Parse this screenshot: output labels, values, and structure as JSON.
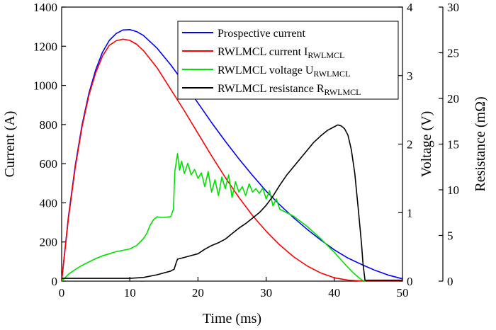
{
  "chart_data": {
    "type": "line",
    "x_axis": {
      "label": "Time (ms)",
      "range": [
        0,
        50
      ],
      "ticks": [
        0,
        10,
        20,
        30,
        40,
        50
      ]
    },
    "y_axes": [
      {
        "id": "current",
        "label": "Current (A)",
        "range": [
          0,
          1400
        ],
        "ticks": [
          0,
          200,
          400,
          600,
          800,
          1000,
          1200,
          1400
        ]
      },
      {
        "id": "voltage",
        "label": "Voltage (V)",
        "range": [
          0,
          4
        ],
        "ticks": [
          0,
          1,
          2,
          3,
          4
        ]
      },
      {
        "id": "resistance",
        "label": "Resistance (mΩ)",
        "range": [
          0,
          30
        ],
        "ticks": [
          0,
          5,
          10,
          15,
          20,
          25,
          30
        ]
      }
    ],
    "grid": false,
    "legend": {
      "placement": "top-right",
      "entries": [
        {
          "text": "Prospective  current",
          "sub": ""
        },
        {
          "text": "RWLMCL current I",
          "sub": "RWLMCL"
        },
        {
          "text": "RWLMCL voltage U",
          "sub": "RWLMCL"
        },
        {
          "text": "RWLMCL resistance R",
          "sub": "RWLMCL"
        }
      ]
    },
    "series": [
      {
        "name": "Prospective  current",
        "axis": "current",
        "color": "#0000ff",
        "x": [
          0,
          1,
          2,
          3,
          4,
          5,
          6,
          7,
          8,
          9,
          10,
          11,
          12,
          14,
          16,
          18,
          20,
          22,
          24,
          26,
          28,
          30,
          32,
          34,
          36,
          38,
          40,
          42,
          44,
          46,
          48,
          50
        ],
        "y": [
          0,
          330,
          590,
          800,
          960,
          1080,
          1170,
          1230,
          1265,
          1283,
          1285,
          1275,
          1255,
          1190,
          1105,
          1010,
          910,
          810,
          715,
          625,
          540,
          460,
          390,
          325,
          265,
          210,
          160,
          118,
          85,
          55,
          30,
          12
        ]
      },
      {
        "name": "RWLMCL current I RWLMCL",
        "axis": "current",
        "color": "#ff0000",
        "x": [
          0,
          1,
          2,
          3,
          4,
          5,
          6,
          7,
          8,
          9,
          10,
          11,
          12,
          14,
          16,
          18,
          20,
          22,
          24,
          26,
          28,
          30,
          32,
          34,
          36,
          38,
          40,
          42,
          44,
          45,
          46,
          48,
          50
        ],
        "y": [
          0,
          320,
          580,
          790,
          950,
          1065,
          1150,
          1205,
          1228,
          1236,
          1230,
          1210,
          1178,
          1090,
          980,
          870,
          755,
          640,
          530,
          428,
          335,
          255,
          185,
          125,
          78,
          42,
          17,
          5,
          1,
          0,
          0,
          0,
          0
        ]
      },
      {
        "name": "RWLMCL voltage U RWLMCL",
        "axis": "voltage",
        "color": "#00e000",
        "x": [
          0,
          1,
          2,
          3,
          4,
          5,
          6,
          7,
          8,
          9,
          10,
          11,
          12,
          12.5,
          13,
          13.5,
          14,
          14.5,
          15,
          16,
          16.4,
          16.6,
          17,
          17.3,
          17.6,
          18,
          18.5,
          19,
          19.5,
          20,
          20.5,
          21,
          21.5,
          22,
          22.5,
          23,
          23.5,
          24,
          24.5,
          25,
          25.5,
          26,
          26.5,
          27,
          27.5,
          28,
          28.5,
          29,
          29.5,
          30,
          30.5,
          31,
          31.5,
          32,
          34,
          36,
          38,
          40,
          42,
          43,
          44,
          44.5
        ],
        "y": [
          0,
          0.1,
          0.17,
          0.23,
          0.28,
          0.33,
          0.37,
          0.4,
          0.43,
          0.45,
          0.47,
          0.52,
          0.62,
          0.7,
          0.82,
          0.9,
          0.94,
          0.93,
          0.93,
          0.94,
          1.05,
          1.6,
          1.86,
          1.62,
          1.75,
          1.57,
          1.72,
          1.55,
          1.63,
          1.5,
          1.58,
          1.38,
          1.6,
          1.3,
          1.48,
          1.25,
          1.52,
          1.35,
          1.55,
          1.22,
          1.45,
          1.3,
          1.38,
          1.25,
          1.42,
          1.3,
          1.35,
          1.28,
          1.36,
          1.2,
          1.32,
          1.1,
          1.2,
          1.05,
          0.95,
          0.8,
          0.62,
          0.42,
          0.2,
          0.1,
          0.02,
          0
        ]
      },
      {
        "name": "RWLMCL resistance R RWLMCL",
        "axis": "resistance",
        "color": "#000000",
        "x": [
          0,
          5,
          10,
          12,
          14,
          15,
          16,
          16.5,
          16.8,
          17,
          18,
          19,
          20,
          21,
          22,
          23,
          24,
          25,
          26,
          27,
          28,
          29,
          30,
          31,
          32,
          33,
          34,
          35,
          36,
          37,
          38,
          39,
          40,
          40.5,
          41,
          41.5,
          42,
          42.5,
          43,
          43.5,
          44,
          44.2,
          44.5,
          50
        ],
        "y": [
          0.3,
          0.3,
          0.3,
          0.4,
          0.7,
          0.9,
          1.1,
          1.3,
          2.0,
          2.4,
          2.6,
          2.8,
          3.0,
          3.5,
          3.9,
          4.2,
          4.6,
          5.2,
          5.8,
          6.3,
          6.9,
          7.5,
          8.3,
          9.3,
          10.5,
          11.6,
          12.5,
          13.4,
          14.3,
          15.2,
          15.9,
          16.5,
          16.9,
          17.1,
          17.0,
          16.7,
          16.0,
          14.4,
          11.8,
          8.0,
          4.0,
          2.0,
          0.1,
          0.1
        ]
      }
    ]
  }
}
